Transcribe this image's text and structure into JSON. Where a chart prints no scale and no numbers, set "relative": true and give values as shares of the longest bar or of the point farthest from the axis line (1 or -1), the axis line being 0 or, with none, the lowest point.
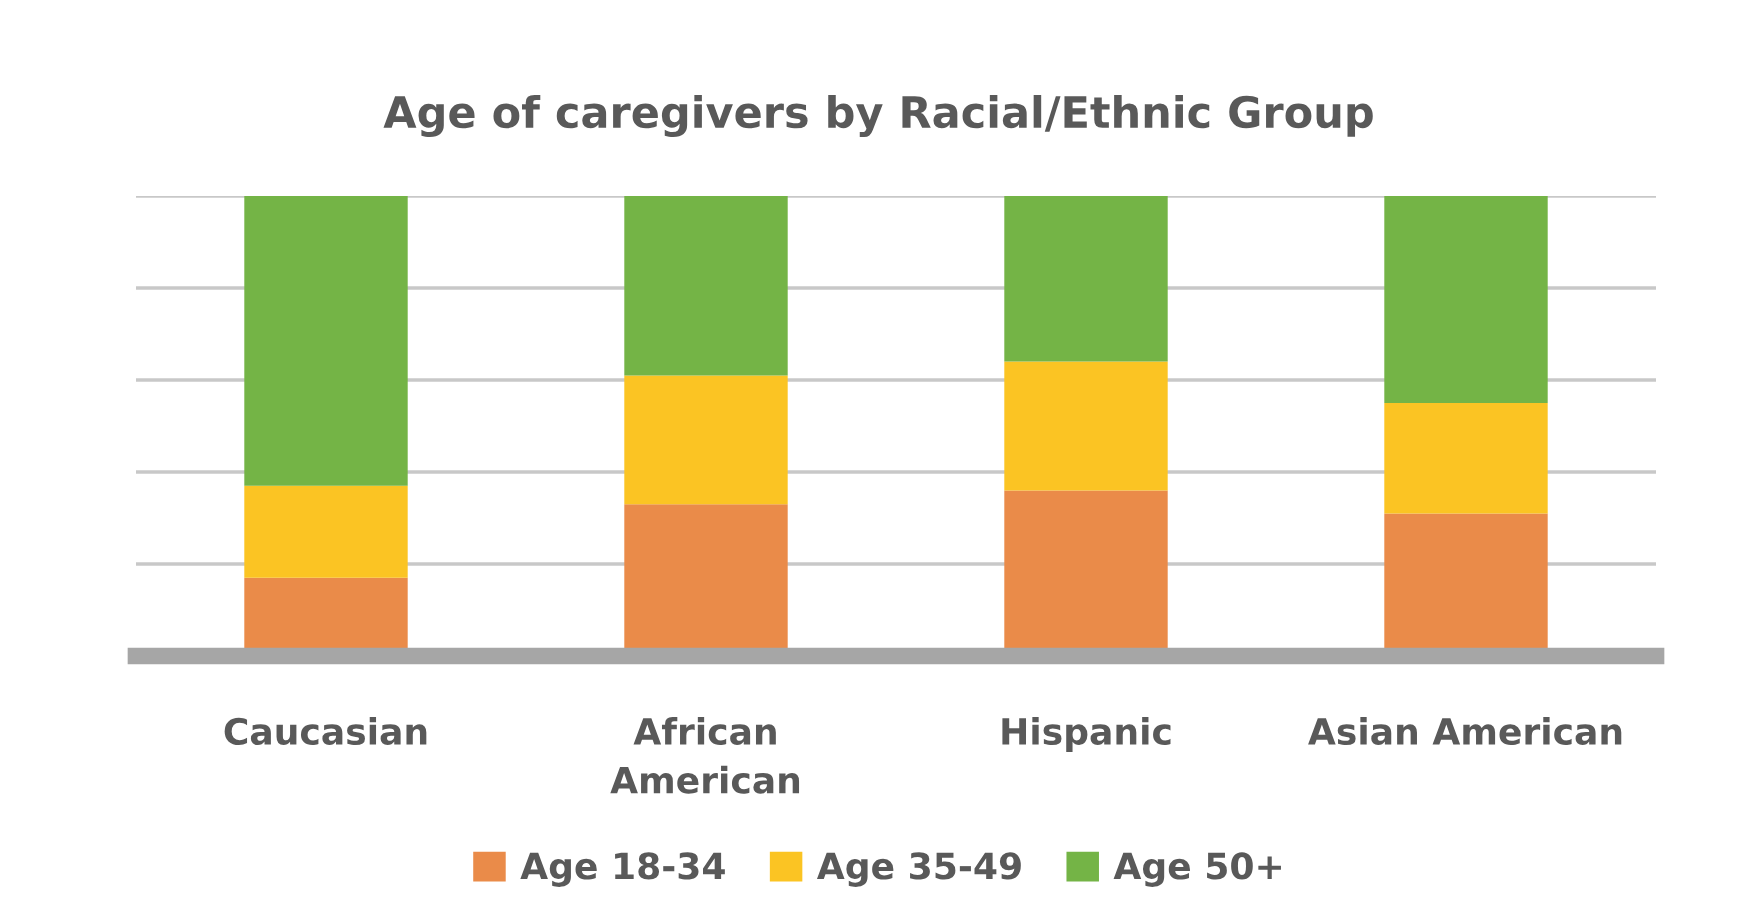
{
  "chart_data": {
    "type": "bar",
    "title": "Age of caregivers by Racial/Ethnic Group",
    "categories": [
      "Caucasian",
      "African\nAmerican",
      "Hispanic",
      "Asian American"
    ],
    "stacked": true,
    "relative": true,
    "grid": "y",
    "legend": "bottom",
    "series": [
      {
        "name": "Age 18-34",
        "color": "#ea8b49",
        "values": [
          0.17,
          0.33,
          0.36,
          0.31
        ]
      },
      {
        "name": "Age 35-49",
        "color": "#fbc423",
        "values": [
          0.2,
          0.28,
          0.28,
          0.24
        ]
      },
      {
        "name": "Age 50+",
        "color": "#74b446",
        "values": [
          0.63,
          0.39,
          0.36,
          0.45
        ]
      }
    ]
  }
}
